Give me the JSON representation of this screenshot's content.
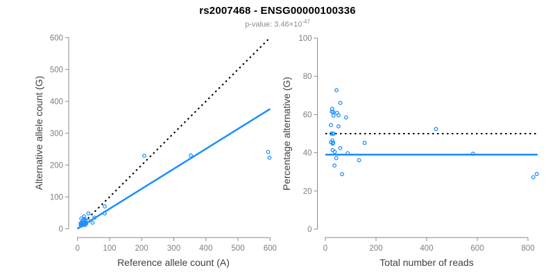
{
  "figure": {
    "title": "rs2007468 - ENSG00000100336",
    "subtitle_prefix": "p-value: 3.46×10",
    "subtitle_exponent": "-47",
    "colors": {
      "points": "#1E90FF",
      "fit_line": "#1E90FF",
      "reference_line": "#000000",
      "axis": "#8a8a8a",
      "tick_labels": "#7f7f7f",
      "axis_titles": "#404040",
      "title": "#000000",
      "subtitle": "#8c8c8c"
    }
  },
  "chart_data": [
    {
      "id": "left",
      "type": "scatter",
      "title": "",
      "xlabel": "Reference allele count (A)",
      "ylabel": "Alternative allele count (G)",
      "xlim": [
        0,
        600
      ],
      "ylim": [
        0,
        600
      ],
      "xticks": [
        0,
        100,
        200,
        300,
        400,
        500,
        600
      ],
      "yticks": [
        0,
        100,
        200,
        300,
        400,
        500,
        600
      ],
      "grid": false,
      "legend": false,
      "points": [
        [
          12,
          32
        ],
        [
          20,
          39
        ],
        [
          10,
          17
        ],
        [
          10,
          16
        ],
        [
          12,
          19
        ],
        [
          18,
          28
        ],
        [
          13,
          19
        ],
        [
          21,
          31
        ],
        [
          34,
          48
        ],
        [
          10,
          12
        ],
        [
          24,
          28
        ],
        [
          208,
          229
        ],
        [
          15,
          15
        ],
        [
          12,
          12
        ],
        [
          16,
          16
        ],
        [
          12,
          10
        ],
        [
          15,
          13
        ],
        [
          16,
          13
        ],
        [
          17,
          14
        ],
        [
          85,
          70
        ],
        [
          34,
          25
        ],
        [
          17,
          12
        ],
        [
          22,
          15
        ],
        [
          53,
          35
        ],
        [
          353,
          230
        ],
        [
          27,
          16
        ],
        [
          85,
          48
        ],
        [
          24,
          12
        ],
        [
          47,
          19
        ],
        [
          598,
          223
        ],
        [
          594,
          241
        ]
      ],
      "lines": [
        {
          "name": "identity-line",
          "style": "dotted",
          "color": "#000000",
          "from": [
            0,
            0
          ],
          "to": [
            600,
            600
          ]
        },
        {
          "name": "fit-line",
          "style": "solid",
          "color": "#1E90FF",
          "from": [
            0,
            0
          ],
          "to": [
            600,
            376
          ]
        }
      ]
    },
    {
      "id": "right",
      "type": "scatter",
      "title": "",
      "xlabel": "Total number of reads",
      "ylabel": "Percentage alternative (G)",
      "xlim": [
        0,
        840
      ],
      "ylim": [
        0,
        100
      ],
      "xticks": [
        0,
        200,
        400,
        600,
        800
      ],
      "yticks": [
        0,
        20,
        40,
        60,
        80,
        100
      ],
      "grid": false,
      "legend": false,
      "points": [
        [
          44,
          72.7
        ],
        [
          59,
          66.1
        ],
        [
          27,
          63.0
        ],
        [
          26,
          61.5
        ],
        [
          31,
          61.3
        ],
        [
          46,
          60.9
        ],
        [
          32,
          59.4
        ],
        [
          52,
          59.6
        ],
        [
          82,
          58.5
        ],
        [
          22,
          54.5
        ],
        [
          52,
          53.8
        ],
        [
          437,
          52.4
        ],
        [
          30,
          50.0
        ],
        [
          24,
          50.0
        ],
        [
          32,
          50.0
        ],
        [
          22,
          45.5
        ],
        [
          28,
          46.4
        ],
        [
          29,
          44.8
        ],
        [
          31,
          45.2
        ],
        [
          155,
          45.2
        ],
        [
          59,
          42.4
        ],
        [
          29,
          41.4
        ],
        [
          37,
          40.5
        ],
        [
          88,
          39.8
        ],
        [
          583,
          39.5
        ],
        [
          43,
          37.2
        ],
        [
          133,
          36.1
        ],
        [
          36,
          33.3
        ],
        [
          66,
          28.8
        ],
        [
          821,
          27.2
        ],
        [
          835,
          28.9
        ]
      ],
      "lines": [
        {
          "name": "fifty-percent-line",
          "style": "dotted",
          "color": "#000000",
          "from": [
            0,
            50
          ],
          "to": [
            838,
            50
          ]
        },
        {
          "name": "mean-percentage-line",
          "style": "solid",
          "color": "#1E90FF",
          "from": [
            0,
            39
          ],
          "to": [
            838,
            39
          ]
        }
      ]
    }
  ]
}
